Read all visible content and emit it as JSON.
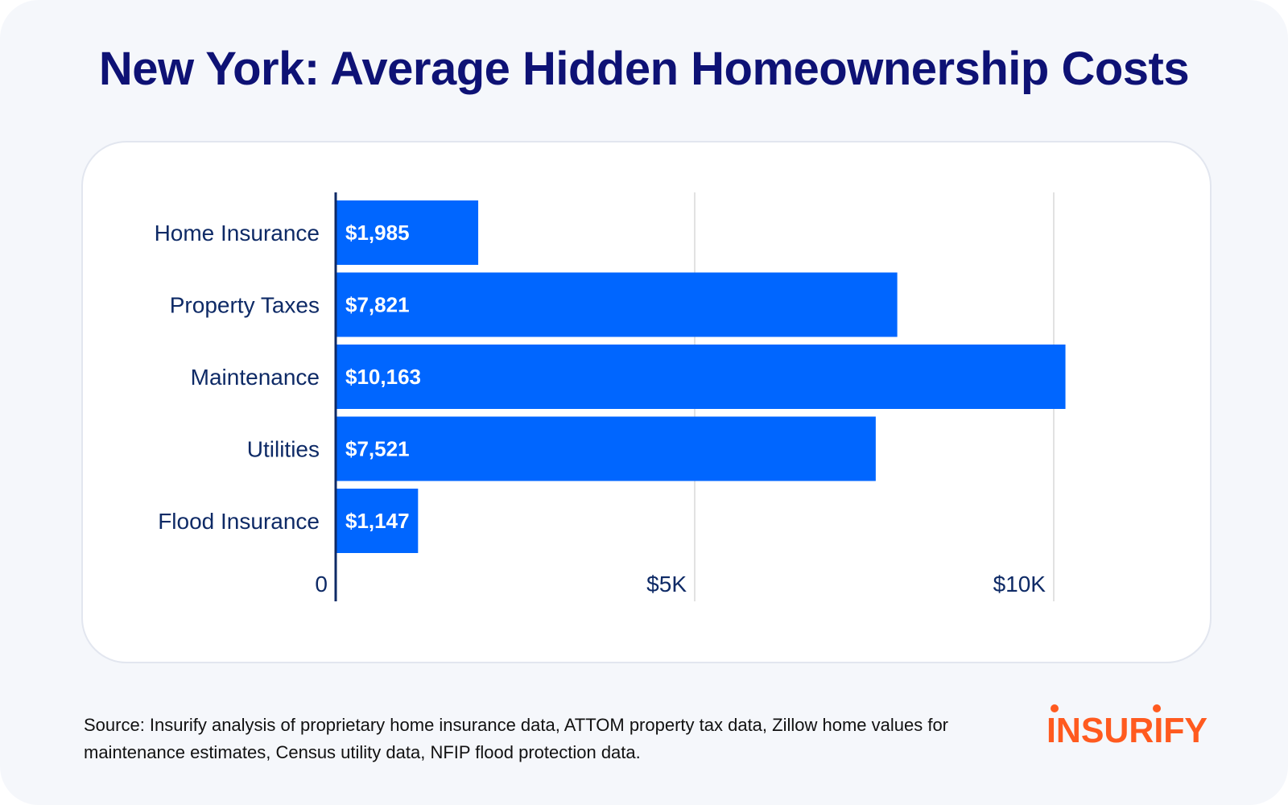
{
  "title": "New York: Average Hidden Homeownership Costs",
  "source": "Source: Insurify analysis of proprietary home insurance data, ATTOM property tax data, Zillow home values for maintenance estimates, Census utility data, NFIP flood protection data.",
  "logo": {
    "text": "INSURIFY",
    "color": "#ff5a1f"
  },
  "colors": {
    "title": "#0e1275",
    "bar": "#0066ff",
    "bar_label": "#ffffff",
    "category_label": "#0e2a66",
    "axis": "#0e2a66",
    "grid": "#d9d9d9"
  },
  "chart_data": {
    "type": "bar",
    "orientation": "horizontal",
    "categories": [
      "Home Insurance",
      "Property Taxes",
      "Maintenance",
      "Utilities",
      "Flood Insurance"
    ],
    "values": [
      1985,
      7821,
      10163,
      7521,
      1147
    ],
    "value_labels": [
      "$1,985",
      "$7,821",
      "$10,163",
      "$7,521",
      "$1,147"
    ],
    "xlim": [
      0,
      10000
    ],
    "xticks": [
      0,
      5000,
      10000
    ],
    "xtick_labels": [
      "0",
      "$5K",
      "$10K"
    ],
    "grid": true
  }
}
